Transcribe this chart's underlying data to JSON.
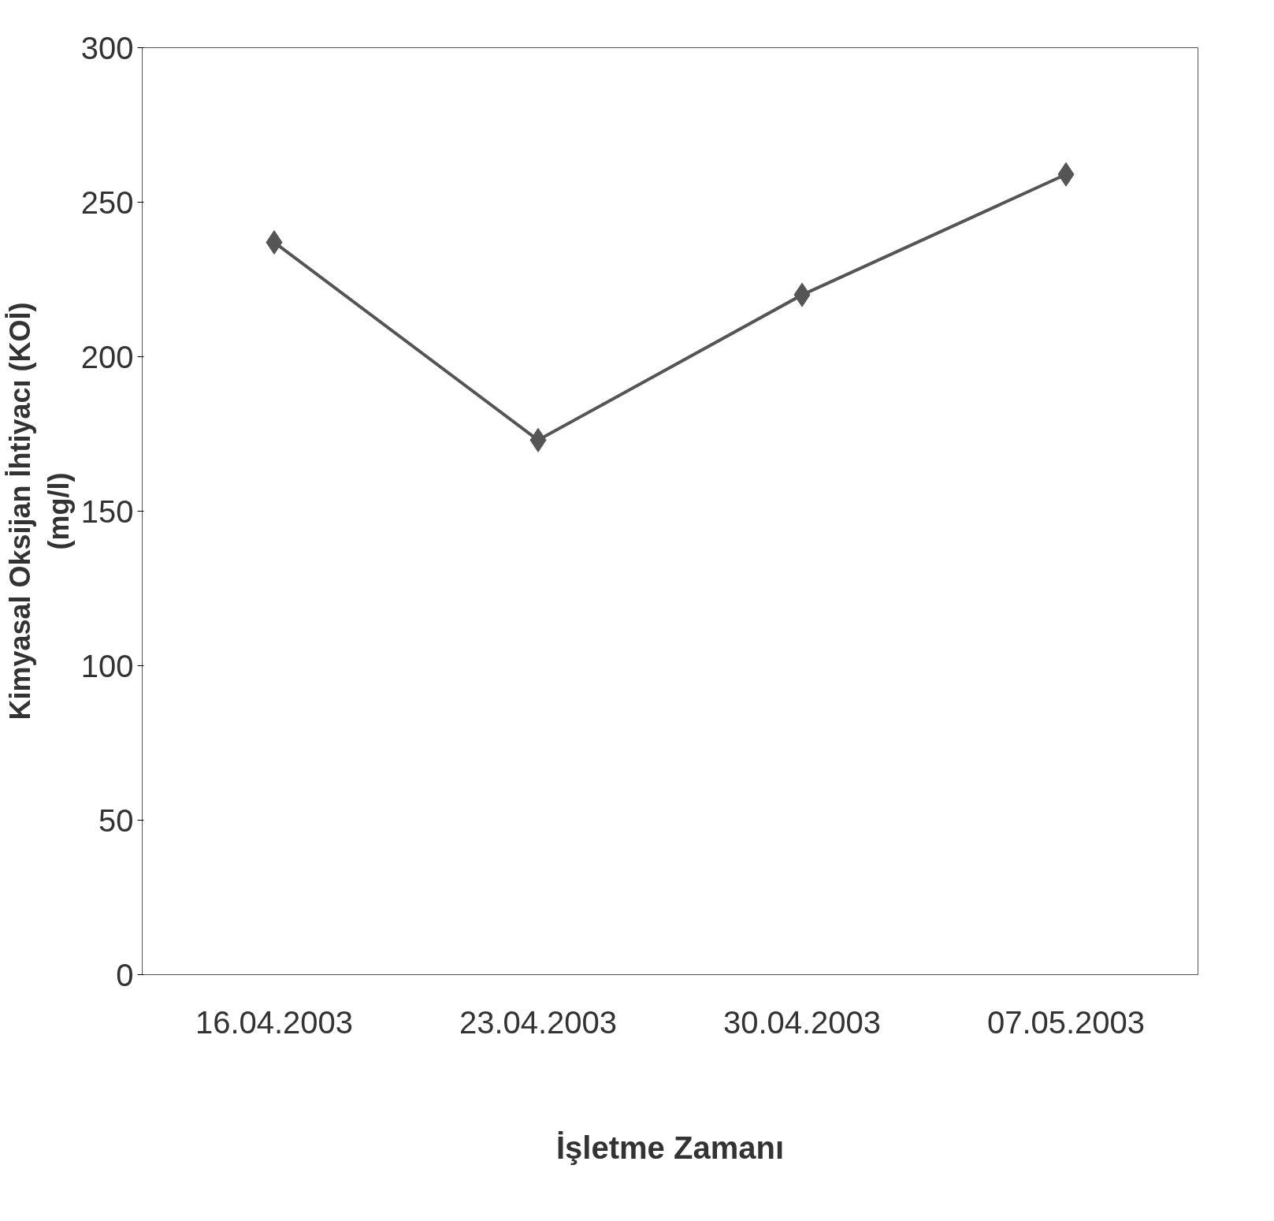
{
  "chart_data": {
    "type": "line",
    "ylabel": "Kimyasal Oksijan İhtiyacı (KOİ)\n(mg/l)",
    "xlabel": "İşletme Zamanı",
    "categories": [
      "16.04.2003",
      "23.04.2003",
      "30.04.2003",
      "07.05.2003"
    ],
    "series": [
      {
        "color": "#555555",
        "values": [
          237,
          173,
          220,
          259
        ]
      }
    ],
    "ylim": [
      0,
      300
    ],
    "yticks": [
      0,
      50,
      100,
      150,
      200,
      250,
      300
    ],
    "marker": "diamond",
    "line_style": "solid",
    "grid": false
  }
}
